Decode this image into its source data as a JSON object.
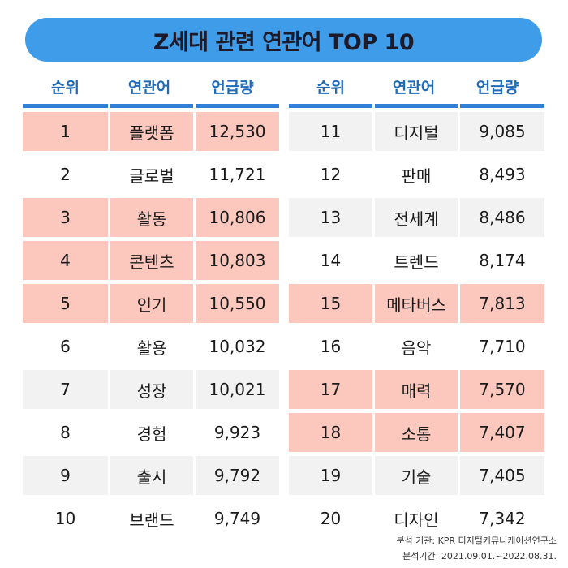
{
  "title": "Z세대 관련 연관어 TOP 10",
  "headers": {
    "rank": "순위",
    "word": "연관어",
    "count": "언급량"
  },
  "chart_data": {
    "type": "table",
    "title": "Z세대 관련 연관어 TOP 10",
    "columns": [
      "순위",
      "연관어",
      "언급량"
    ],
    "highlight_color": "#fcc7bd",
    "rows": [
      {
        "rank": "1",
        "word": "플랫폼",
        "count": "12,530",
        "value": 12530,
        "highlight": true
      },
      {
        "rank": "2",
        "word": "글로벌",
        "count": "11,721",
        "value": 11721,
        "highlight": false
      },
      {
        "rank": "3",
        "word": "활동",
        "count": "10,806",
        "value": 10806,
        "highlight": true
      },
      {
        "rank": "4",
        "word": "콘텐츠",
        "count": "10,803",
        "value": 10803,
        "highlight": true
      },
      {
        "rank": "5",
        "word": "인기",
        "count": "10,550",
        "value": 10550,
        "highlight": true
      },
      {
        "rank": "6",
        "word": "활용",
        "count": "10,032",
        "value": 10032,
        "highlight": false
      },
      {
        "rank": "7",
        "word": "성장",
        "count": "10,021",
        "value": 10021,
        "highlight": false
      },
      {
        "rank": "8",
        "word": "경험",
        "count": "9,923",
        "value": 9923,
        "highlight": false
      },
      {
        "rank": "9",
        "word": "출시",
        "count": "9,792",
        "value": 9792,
        "highlight": false
      },
      {
        "rank": "10",
        "word": "브랜드",
        "count": "9,749",
        "value": 9749,
        "highlight": false
      },
      {
        "rank": "11",
        "word": "디지털",
        "count": "9,085",
        "value": 9085,
        "highlight": false
      },
      {
        "rank": "12",
        "word": "판매",
        "count": "8,493",
        "value": 8493,
        "highlight": false
      },
      {
        "rank": "13",
        "word": "전세계",
        "count": "8,486",
        "value": 8486,
        "highlight": false
      },
      {
        "rank": "14",
        "word": "트렌드",
        "count": "8,174",
        "value": 8174,
        "highlight": false
      },
      {
        "rank": "15",
        "word": "메타버스",
        "count": "7,813",
        "value": 7813,
        "highlight": true
      },
      {
        "rank": "16",
        "word": "음악",
        "count": "7,710",
        "value": 7710,
        "highlight": false
      },
      {
        "rank": "17",
        "word": "매력",
        "count": "7,570",
        "value": 7570,
        "highlight": true
      },
      {
        "rank": "18",
        "word": "소통",
        "count": "7,407",
        "value": 7407,
        "highlight": true
      },
      {
        "rank": "19",
        "word": "기술",
        "count": "7,405",
        "value": 7405,
        "highlight": false
      },
      {
        "rank": "20",
        "word": "디자인",
        "count": "7,342",
        "value": 7342,
        "highlight": false
      }
    ]
  },
  "footer": {
    "source": "분석 기관: KPR 디지털커뮤니케이션연구소",
    "period": "분석기간: 2021.09.01.~2022.08.31."
  }
}
